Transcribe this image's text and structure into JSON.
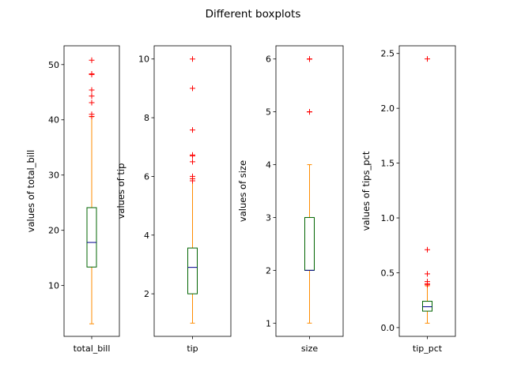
{
  "figure_title": "Different boxplots",
  "colors": {
    "box": "#006400",
    "whisker": "#ff8c00",
    "median": "#00008b",
    "flier": "#ff0000",
    "axes": "#000000"
  },
  "chart_data": [
    {
      "type": "boxplot",
      "category": "total_bill",
      "ylabel": "values of total_bill",
      "ylim": [
        0.8,
        53.4
      ],
      "yticks": [
        10,
        20,
        30,
        40,
        50
      ],
      "ytick_labels": [
        "10",
        "20",
        "30",
        "40",
        "50"
      ],
      "whisker_low": 3.07,
      "q1": 13.35,
      "median": 17.8,
      "q3": 24.1,
      "whisker_high": 40.55,
      "fliers": [
        40.6,
        41.0,
        43.1,
        44.3,
        45.4,
        48.2,
        48.3,
        48.3,
        50.8
      ]
    },
    {
      "type": "boxplot",
      "category": "tip",
      "ylabel": "values of tip",
      "ylim": [
        0.55,
        10.45
      ],
      "yticks": [
        2,
        4,
        6,
        8,
        10
      ],
      "ytick_labels": [
        "2",
        "4",
        "6",
        "8",
        "10"
      ],
      "whisker_low": 1.0,
      "q1": 2.0,
      "median": 2.9,
      "q3": 3.56,
      "whisker_high": 5.92,
      "fliers": [
        5.85,
        5.92,
        6.0,
        6.5,
        6.7,
        6.73,
        7.58,
        9.0,
        10.0
      ]
    },
    {
      "type": "boxplot",
      "category": "size",
      "ylabel": "values of size",
      "ylim": [
        0.75,
        6.25
      ],
      "yticks": [
        1,
        2,
        3,
        4,
        5,
        6
      ],
      "ytick_labels": [
        "1",
        "2",
        "3",
        "4",
        "5",
        "6"
      ],
      "whisker_low": 1.0,
      "q1": 2.0,
      "median": 2.0,
      "q3": 3.0,
      "whisker_high": 4.0,
      "fliers": [
        5,
        5,
        5,
        6,
        6,
        6
      ]
    },
    {
      "type": "boxplot",
      "category": "tip_pct",
      "ylabel": "values of tips_pct",
      "ylim": [
        -0.08,
        2.57
      ],
      "yticks": [
        0.0,
        0.5,
        1.0,
        1.5,
        2.0,
        2.5
      ],
      "ytick_labels": [
        "0.0",
        "0.5",
        "1.0",
        "1.5",
        "2.0",
        "2.5"
      ],
      "whisker_low": 0.04,
      "q1": 0.15,
      "median": 0.19,
      "q3": 0.24,
      "whisker_high": 0.38,
      "fliers": [
        0.39,
        0.4,
        0.42,
        0.49,
        0.71,
        2.45
      ]
    }
  ]
}
